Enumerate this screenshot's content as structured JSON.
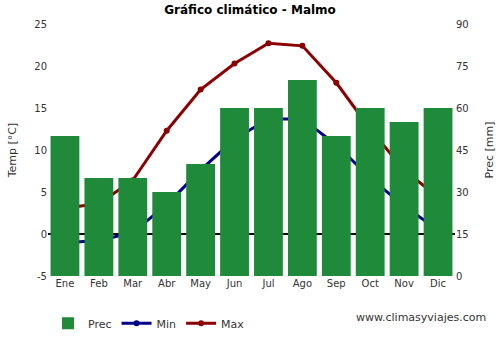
{
  "chart_data": {
    "type": "bar",
    "title": "Gráfico climático - Malmo",
    "y_label": "Temp [°C]",
    "y2_label": "Prec [mm]",
    "categories": [
      "Ene",
      "Feb",
      "Mar",
      "Abr",
      "May",
      "Jun",
      "Jul",
      "Ago",
      "Sep",
      "Oct",
      "Nov",
      "Dic"
    ],
    "series": [
      {
        "name": "Prec",
        "type": "bar",
        "axis": "y2",
        "color": "#1f8a3a",
        "values": [
          50,
          35,
          35,
          30,
          40,
          60,
          60,
          70,
          50,
          60,
          55,
          60
        ]
      },
      {
        "name": "Min",
        "type": "line",
        "color": "#00008b",
        "marker": "circle",
        "line_style": "solid",
        "values": [
          -1.0,
          -0.8,
          0.2,
          3.5,
          7.6,
          11.3,
          13.7,
          13.7,
          10.6,
          6.7,
          3.3,
          0.5
        ]
      },
      {
        "name": "Max",
        "type": "line",
        "color": "#8b0000",
        "marker": "circle",
        "line_style": "solid",
        "values": [
          3.1,
          3.6,
          6.4,
          12.3,
          17.2,
          20.3,
          22.7,
          22.4,
          18.0,
          12.5,
          7.6,
          4.4
        ]
      }
    ],
    "ylim": [
      -5,
      25
    ],
    "yticks": [
      -5,
      0,
      5,
      10,
      15,
      20,
      25
    ],
    "y2lim": [
      0,
      90
    ],
    "y2ticks": [
      0,
      15,
      30,
      45,
      60,
      75,
      90
    ],
    "grid": false,
    "legend": "bottom",
    "annotations": [
      "www.climasyviajes.com"
    ]
  }
}
